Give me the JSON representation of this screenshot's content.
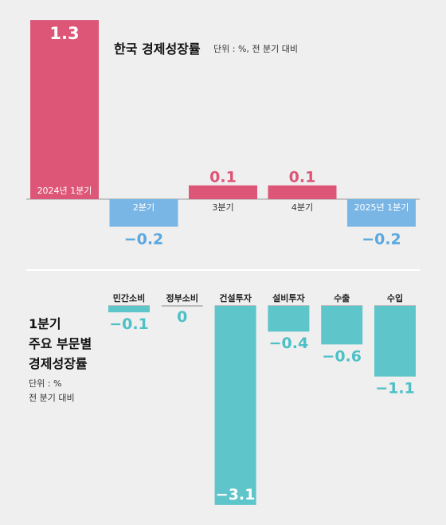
{
  "top": {
    "title": "한국 경제성장률",
    "subtitle": "단위 : %, 전 분기 대비"
  },
  "bottom": {
    "title_lines": [
      "1분기",
      "주요 부문별",
      "경제성장률"
    ],
    "unit_lines": [
      "단위 : %",
      "전 분기 대비"
    ]
  },
  "colors": {
    "positive": "#dd5577",
    "negative_top": "#79b6e6",
    "bar_bottom": "#5ec5ca",
    "value_negative_top": "#5aa8e0",
    "value_bottom": "#4dc0c6"
  },
  "chart_data": [
    {
      "type": "bar",
      "title": "한국 경제성장률",
      "subtitle": "단위 : %, 전 분기 대비",
      "categories": [
        "2024년 1분기",
        "2분기",
        "3분기",
        "4분기",
        "2025년 1분기"
      ],
      "values": [
        1.3,
        -0.2,
        0.1,
        0.1,
        -0.2
      ],
      "value_labels": [
        "1.3",
        "−0.2",
        "0.1",
        "0.1",
        "−0.2"
      ],
      "grid": false
    },
    {
      "type": "bar",
      "title": "1분기 주요 부문별 경제성장률",
      "subtitle": "단위 : % 전 분기 대비",
      "categories": [
        "민간소비",
        "정부소비",
        "건설투자",
        "설비투자",
        "수출",
        "수입"
      ],
      "values": [
        -0.1,
        0,
        -3.1,
        -0.4,
        -0.6,
        -1.1
      ],
      "value_labels": [
        "−0.1",
        "0",
        "−3.1",
        "−0.4",
        "−0.6",
        "−1.1"
      ],
      "grid": false
    }
  ]
}
